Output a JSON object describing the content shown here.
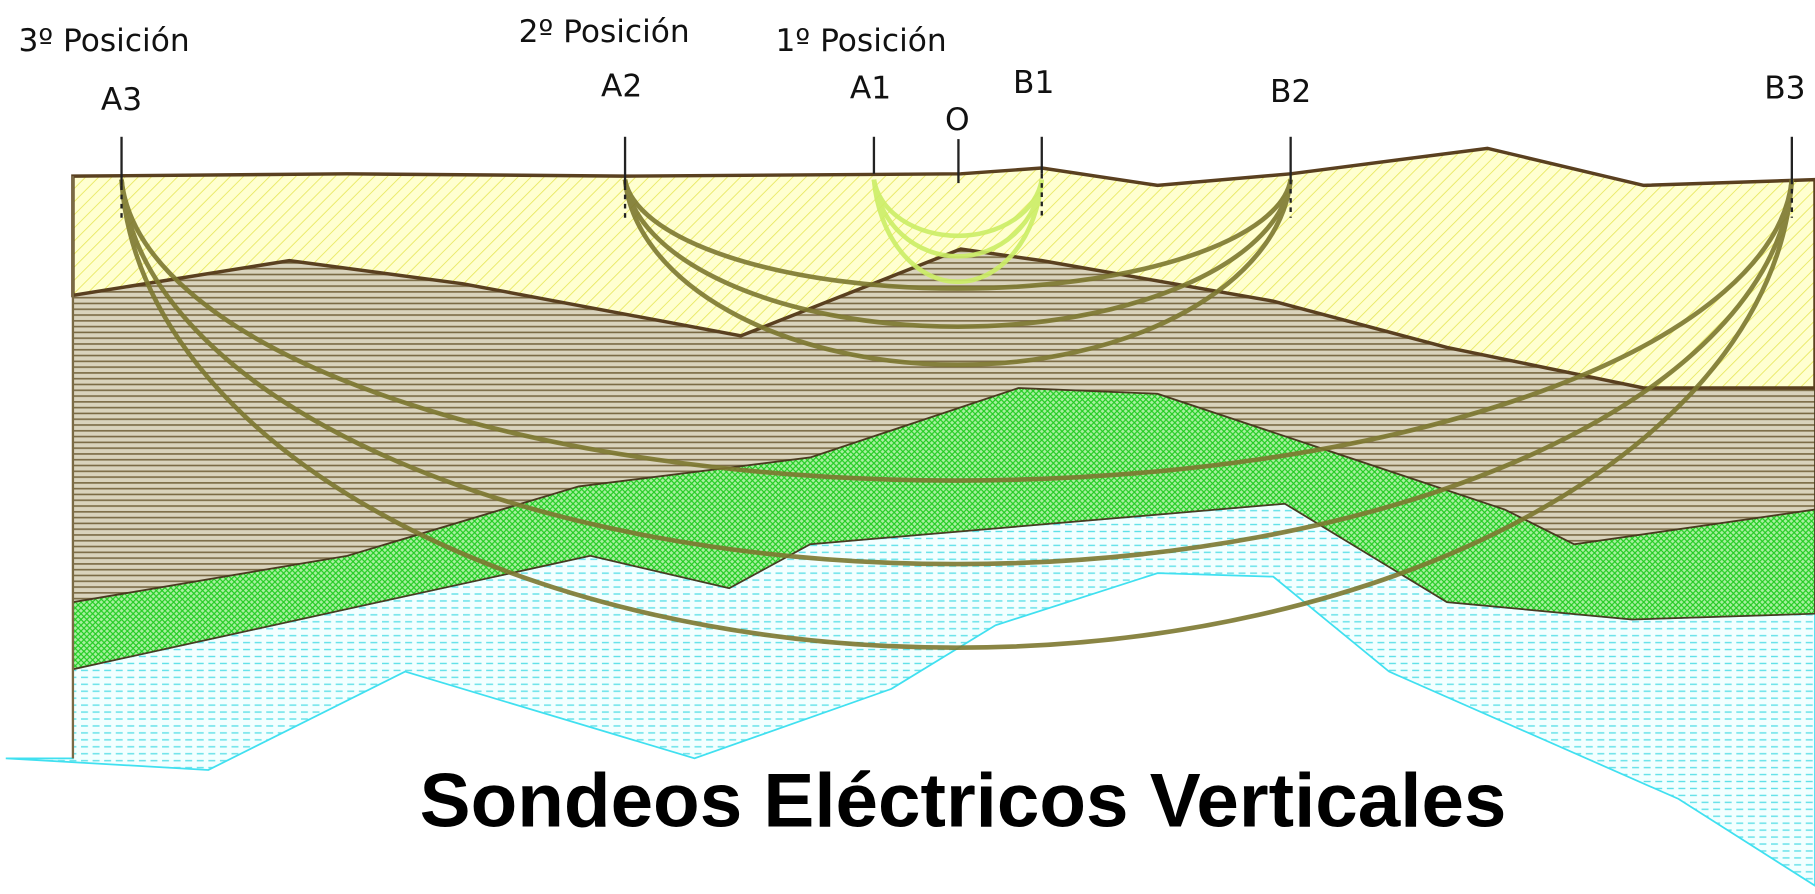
{
  "title": "Sondeos Eléctricos Verticales",
  "positions": [
    "3º Posición",
    "2º Posición",
    "1º Posición"
  ],
  "electrodes": [
    "A3",
    "A2",
    "A1",
    "O",
    "B1",
    "B2",
    "B3"
  ]
}
